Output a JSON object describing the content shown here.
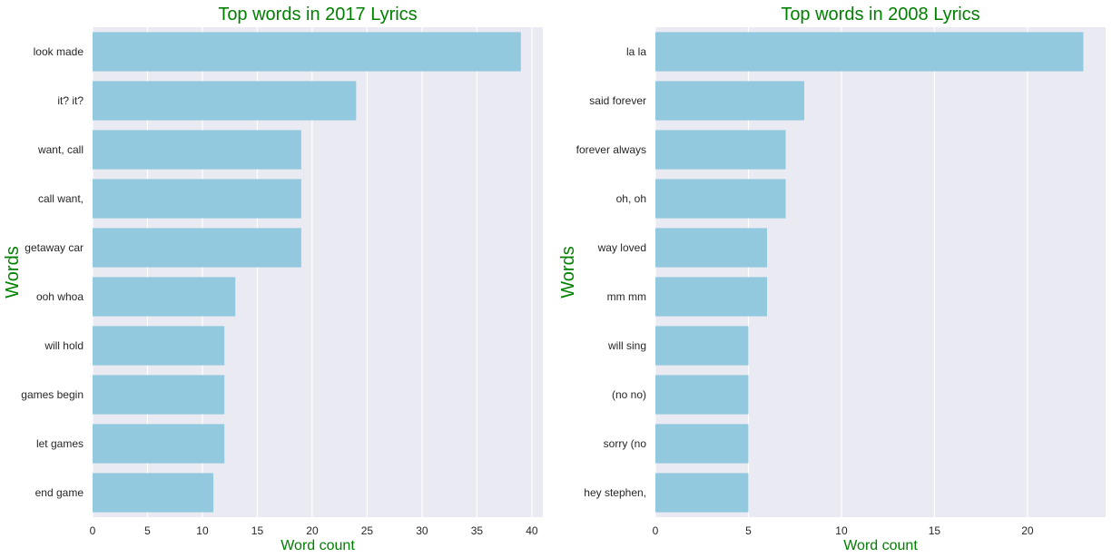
{
  "chart_data": [
    {
      "type": "bar",
      "orientation": "horizontal",
      "title": "Top words in 2017 Lyrics",
      "xlabel": "Word count",
      "ylabel": "Words",
      "categories": [
        "look made",
        "it? it?",
        "want, call",
        "call want,",
        "getaway car",
        "ooh whoa",
        "will hold",
        "games begin",
        "let games",
        "end game"
      ],
      "values": [
        39,
        24,
        19,
        19,
        19,
        13,
        12,
        12,
        12,
        11
      ],
      "xlim": [
        0,
        41
      ],
      "xticks": [
        0,
        5,
        10,
        15,
        20,
        25,
        30,
        35,
        40
      ],
      "grid": true,
      "bar_color": "#92c9de",
      "background": "#eaeaf2"
    },
    {
      "type": "bar",
      "orientation": "horizontal",
      "title": "Top words in 2008 Lyrics",
      "xlabel": "Word count",
      "ylabel": "Words",
      "categories": [
        "la la",
        "said forever",
        "forever always",
        "oh, oh",
        "way loved",
        "mm mm",
        "will sing",
        "(no no)",
        "sorry (no",
        "hey stephen,"
      ],
      "values": [
        23,
        8,
        7,
        7,
        6,
        6,
        5,
        5,
        5,
        5
      ],
      "xlim": [
        0,
        24.2
      ],
      "xticks": [
        0,
        5,
        10,
        15,
        20
      ],
      "grid": true,
      "bar_color": "#92c9de",
      "background": "#eaeaf2"
    }
  ]
}
